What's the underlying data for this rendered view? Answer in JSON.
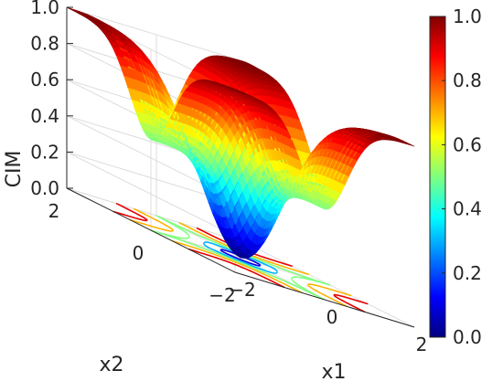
{
  "chart_data": {
    "type": "surface",
    "title": "",
    "xlabel": "x1",
    "ylabel": "x2",
    "zlabel": "CIM",
    "xlim": [
      -2,
      2
    ],
    "ylim": [
      -2,
      2
    ],
    "zlim": [
      0,
      1
    ],
    "x_ticks": [
      "-2",
      "0",
      "2"
    ],
    "y_ticks": [
      "-2",
      "0",
      "2"
    ],
    "z_ticks": [
      "0.0",
      "0.2",
      "0.4",
      "0.6",
      "0.8",
      "1.0"
    ],
    "colorbar": {
      "colormap": "jet",
      "ticks": [
        "0.0",
        "0.2",
        "0.4",
        "0.6",
        "0.8",
        "1.0"
      ],
      "range": [
        0,
        1
      ]
    },
    "contour_levels": [
      0.1,
      0.3,
      0.5,
      0.7,
      0.9
    ],
    "grid": true
  }
}
